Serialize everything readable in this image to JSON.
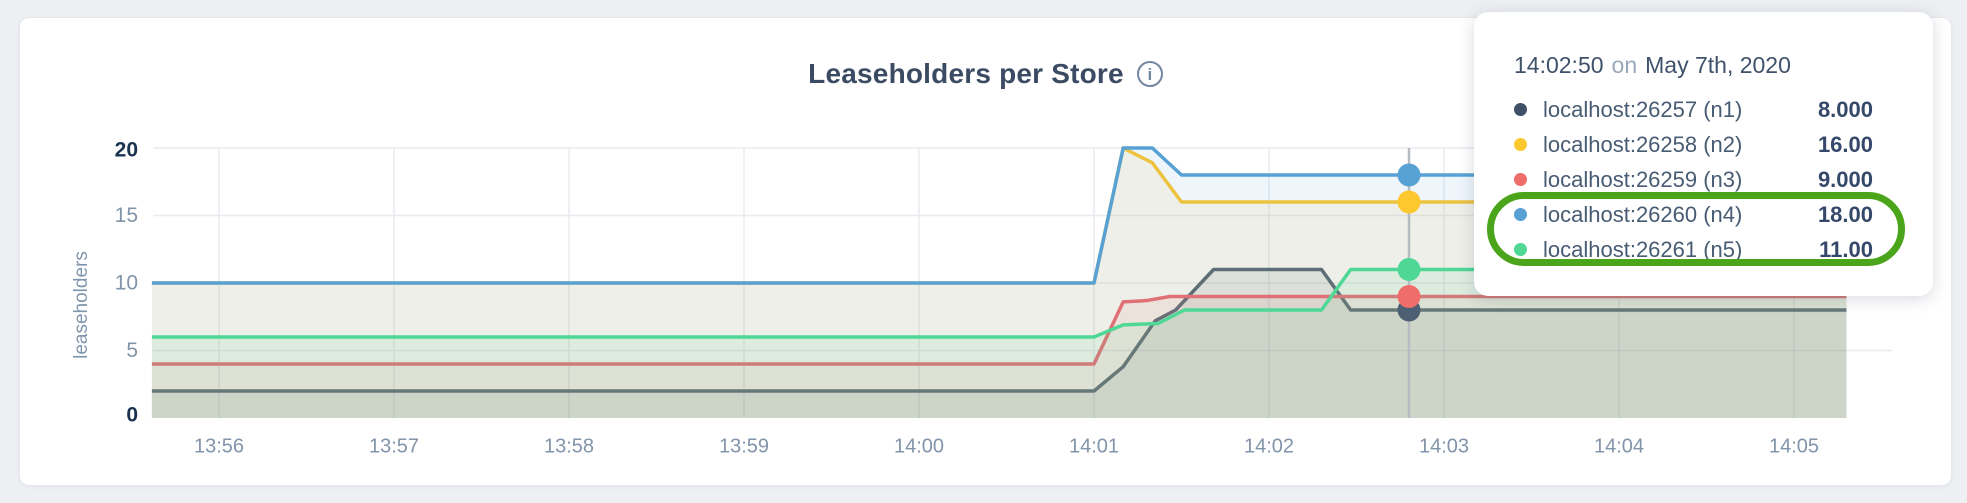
{
  "header": {
    "title": "Leaseholders per Store",
    "info_icon": "i"
  },
  "tooltip": {
    "time": "14:02:50",
    "connector": "on",
    "date": "May 7th, 2020",
    "rows": [
      {
        "label": "localhost:26257 (n1)",
        "value": "8.000",
        "color": "#3f5069"
      },
      {
        "label": "localhost:26258 (n2)",
        "value": "16.00",
        "color": "#fdc72e"
      },
      {
        "label": "localhost:26259 (n3)",
        "value": "9.000",
        "color": "#ef6d6b"
      },
      {
        "label": "localhost:26260 (n4)",
        "value": "18.00",
        "color": "#57a1d4"
      },
      {
        "label": "localhost:26261 (n5)",
        "value": "11.00",
        "color": "#4fd795"
      }
    ]
  },
  "annotation": {
    "type": "hand-drawn-oval",
    "color": "#4aa51a",
    "rows_highlighted": [
      "localhost:26260 (n4)",
      "localhost:26261 (n5)"
    ]
  },
  "chart_data": {
    "type": "line",
    "title": "Leaseholders per Store",
    "xlabel": "",
    "ylabel": "leaseholders",
    "ylim": [
      0,
      20
    ],
    "y_ticks": [
      0,
      5,
      10,
      15,
      20
    ],
    "x_tick_labels": [
      "13:56",
      "13:57",
      "13:58",
      "13:59",
      "14:00",
      "14:01",
      "14:02",
      "14:03",
      "14:04",
      "14:05"
    ],
    "x_tick_seconds": [
      0,
      60,
      120,
      180,
      240,
      300,
      360,
      420,
      480,
      540
    ],
    "x_domain_seconds": [
      -23,
      574
    ],
    "grid": true,
    "legend_position": "tooltip-only",
    "hover": {
      "seconds": 408,
      "label": "14:02:50 on May 7th, 2020"
    },
    "series": [
      {
        "name": "localhost:26257 (n1)",
        "color": "#4d5f72",
        "fill_opacity": 0.12,
        "hover_value": 8,
        "points": [
          [
            -23,
            2
          ],
          [
            300,
            2
          ],
          [
            310,
            3.8
          ],
          [
            321,
            7.2
          ],
          [
            328,
            8
          ],
          [
            341,
            11
          ],
          [
            378,
            11
          ],
          [
            388,
            8
          ],
          [
            558,
            8
          ]
        ]
      },
      {
        "name": "localhost:26258 (n2)",
        "color": "#fdc72e",
        "fill_opacity": 0.1,
        "hover_value": 16,
        "points": [
          [
            -23,
            10
          ],
          [
            300,
            10
          ],
          [
            310,
            20
          ],
          [
            320,
            18.9
          ],
          [
            330,
            16
          ],
          [
            558,
            16
          ]
        ]
      },
      {
        "name": "localhost:26259 (n3)",
        "color": "#ef6d6b",
        "fill_opacity": 0.1,
        "hover_value": 9,
        "points": [
          [
            -23,
            4
          ],
          [
            300,
            4
          ],
          [
            310,
            8.6
          ],
          [
            318,
            8.7
          ],
          [
            326,
            9
          ],
          [
            558,
            9
          ]
        ]
      },
      {
        "name": "localhost:26260 (n4)",
        "color": "#57a1d4",
        "fill_opacity": 0.1,
        "hover_value": 18,
        "points": [
          [
            -23,
            10
          ],
          [
            300,
            10
          ],
          [
            310,
            20
          ],
          [
            320,
            20
          ],
          [
            330,
            18
          ],
          [
            558,
            18
          ]
        ]
      },
      {
        "name": "localhost:26261 (n5)",
        "color": "#4fd795",
        "fill_opacity": 0.1,
        "hover_value": 11,
        "points": [
          [
            -23,
            6
          ],
          [
            300,
            6
          ],
          [
            310,
            6.9
          ],
          [
            322,
            7
          ],
          [
            331,
            8
          ],
          [
            378,
            8
          ],
          [
            388,
            11
          ],
          [
            558,
            11
          ]
        ]
      }
    ],
    "axis_colors": {
      "tick_label": "#8294aa",
      "tick_label_bold": "#1a3350",
      "gridline": "#e8ebef",
      "hover_line": "#b7bbc2"
    }
  }
}
